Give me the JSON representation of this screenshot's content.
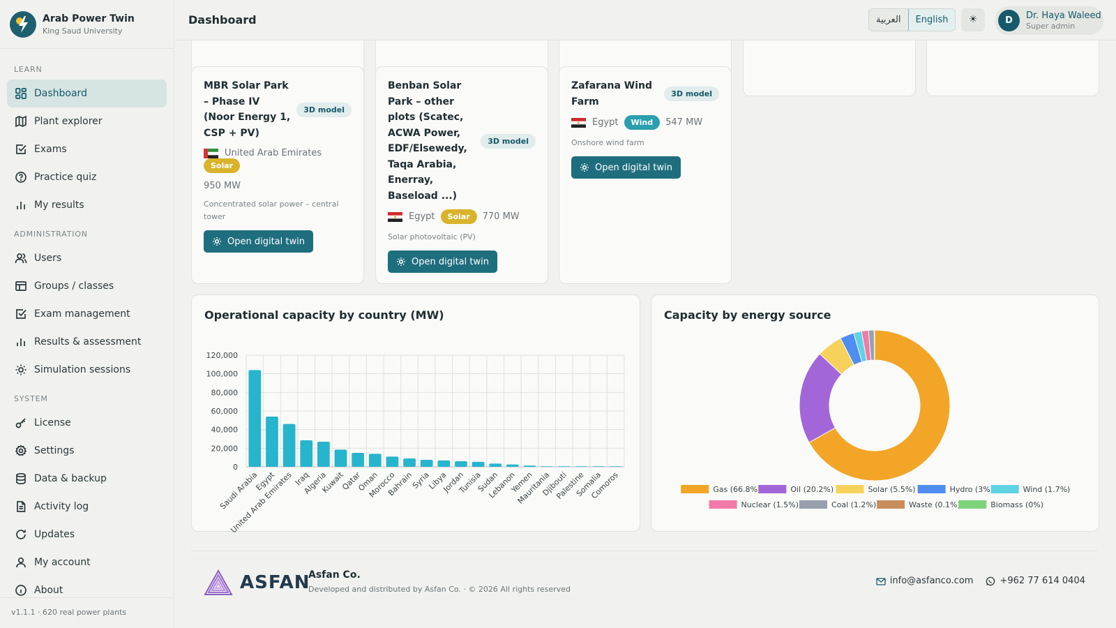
{
  "brand": {
    "title": "Arab Power Twin",
    "subtitle": "King Saud University"
  },
  "sidebar": {
    "sections": [
      {
        "label": "LEARN",
        "items": [
          "Dashboard",
          "Plant explorer",
          "Exams",
          "Practice quiz",
          "My results"
        ]
      },
      {
        "label": "ADMINISTRATION",
        "items": [
          "Users",
          "Groups / classes",
          "Exam management",
          "Results & assessment",
          "Simulation sessions"
        ]
      },
      {
        "label": "SYSTEM",
        "items": [
          "License",
          "Settings",
          "Data & backup",
          "Activity log",
          "Updates",
          "My account",
          "About"
        ]
      }
    ],
    "active": "Dashboard",
    "footer": "v1.1.1 · 620 real power plants"
  },
  "header": {
    "title": "Dashboard",
    "lang_ar": "العربية",
    "lang_en": "English",
    "theme_icon": "☀",
    "user_initial": "D",
    "user_name": "Dr. Haya Waleed",
    "user_role": "Super admin"
  },
  "plants": [
    {
      "name": "MBR Solar Park – Phase IV (Noor Energy 1, CSP + PV)",
      "badge": "3D model",
      "flag": "uae-flag-icon",
      "country": "United Arab Emirates",
      "type": "Solar",
      "capacity": "950 MW",
      "desc": "Concentrated solar power – central tower",
      "button": "Open digital twin"
    },
    {
      "name": "Benban Solar Park – other plots (Scatec, ACWA Power, EDF/Elsewedy, Taqa Arabia, Enerray, Baseload ...)",
      "badge": "3D model",
      "flag": "egypt-flag-icon",
      "country": "Egypt",
      "type": "Solar",
      "capacity": "770 MW",
      "desc": "Solar photovoltaic (PV)",
      "button": "Open digital twin"
    },
    {
      "name": "Zafarana Wind Farm",
      "badge": "3D model",
      "flag": "egypt-flag-icon",
      "country": "Egypt",
      "type": "Wind",
      "capacity": "547 MW",
      "desc": "Onshore wind farm",
      "button": "Open digital twin"
    }
  ],
  "chart_data": [
    {
      "type": "bar",
      "title": "Operational capacity by country (MW)",
      "categories": [
        "Saudi Arabia",
        "Egypt",
        "United Arab Emirates",
        "Iraq",
        "Algeria",
        "Kuwait",
        "Qatar",
        "Oman",
        "Morocco",
        "Bahrain",
        "Syria",
        "Libya",
        "Jordan",
        "Tunisia",
        "Sudan",
        "Lebanon",
        "Yemen",
        "Mauritania",
        "Djibouti",
        "Palestine",
        "Somalia",
        "Comoros"
      ],
      "values": [
        104000,
        54000,
        46000,
        28500,
        27000,
        18500,
        15000,
        14000,
        11000,
        9000,
        7500,
        6800,
        6000,
        5300,
        3500,
        2500,
        1300,
        300,
        100,
        100,
        50,
        50
      ],
      "yticks": [
        "0",
        "20,000",
        "40,000",
        "60,000",
        "80,000",
        "100,000",
        "120,000"
      ],
      "ylim": [
        0,
        120000
      ],
      "color": "#26b5cc",
      "grid": true
    },
    {
      "type": "pie",
      "title": "Capacity by energy source",
      "labels": [
        "Gas (66.8%)",
        "Oil (20.2%)",
        "Solar (5.5%)",
        "Hydro (3%)",
        "Wind (1.7%)",
        "Nuclear (1.5%)",
        "Coal (1.2%)",
        "Waste (0.1%)",
        "Biomass (0%)"
      ],
      "values": [
        66.8,
        20.2,
        5.5,
        3,
        1.7,
        1.5,
        1.2,
        0.1,
        0
      ],
      "colors": [
        "#f2a526",
        "#a366d8",
        "#f6d25a",
        "#4f8ef0",
        "#5ed3e4",
        "#f07aa8",
        "#96a0ae",
        "#c98d5c",
        "#7ed37a"
      ],
      "legend": "bottom"
    }
  ],
  "footer": {
    "logo_text": "ASFAN",
    "company": "Asfan Co.",
    "copyright": "Developed and distributed by Asfan Co. · © 2026 All rights reserved",
    "email": "info@asfanco.com",
    "phone": "+962 77 614 0404"
  }
}
